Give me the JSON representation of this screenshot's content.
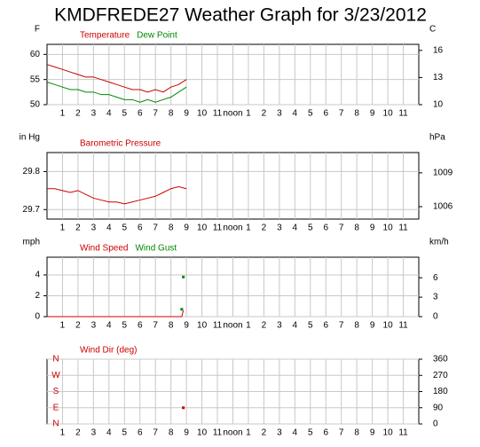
{
  "title": "KMDFREDE27 Weather Graph for 3/23/2012",
  "chart_data": [
    {
      "type": "line",
      "y_label": "F",
      "y2_label": "C",
      "xlim": [
        0,
        24
      ],
      "xticks": [
        1,
        2,
        3,
        4,
        5,
        6,
        7,
        8,
        9,
        10,
        11,
        {
          "value": 12,
          "label": "noon"
        },
        {
          "value": 13,
          "label": "1"
        },
        {
          "value": 14,
          "label": "2"
        },
        {
          "value": 15,
          "label": "3"
        },
        {
          "value": 16,
          "label": "4"
        },
        {
          "value": 17,
          "label": "5"
        },
        {
          "value": 18,
          "label": "6"
        },
        {
          "value": 19,
          "label": "7"
        },
        {
          "value": 20,
          "label": "8"
        },
        {
          "value": 21,
          "label": "9"
        },
        {
          "value": 22,
          "label": "10"
        },
        {
          "value": 23,
          "label": "11"
        }
      ],
      "ylim": [
        50,
        62
      ],
      "yticks": [
        50,
        55,
        60
      ],
      "y2lim": [
        10,
        16.67
      ],
      "y2ticks": [
        10,
        13,
        16
      ],
      "grid": true,
      "series": [
        {
          "name": "Temperature",
          "color": "#cc0000",
          "x": [
            0,
            0.5,
            1,
            1.5,
            2,
            2.5,
            3,
            3.5,
            4,
            4.5,
            5,
            5.5,
            6,
            6.5,
            7,
            7.5,
            8,
            8.5,
            9
          ],
          "values": [
            58,
            57.5,
            57,
            56.5,
            56,
            55.5,
            55.5,
            55,
            54.5,
            54,
            53.5,
            53,
            53,
            52.5,
            53,
            52.5,
            53.5,
            54,
            55
          ]
        },
        {
          "name": "Dew Point",
          "color": "#008800",
          "x": [
            0,
            0.5,
            1,
            1.5,
            2,
            2.5,
            3,
            3.5,
            4,
            4.5,
            5,
            5.5,
            6,
            6.5,
            7,
            7.5,
            8,
            8.5,
            9
          ],
          "values": [
            54.5,
            54,
            53.5,
            53,
            53,
            52.5,
            52.5,
            52,
            52,
            51.5,
            51,
            51,
            50.5,
            51,
            50.5,
            51,
            51.5,
            52.5,
            53.5
          ]
        }
      ]
    },
    {
      "type": "line",
      "y_label": "in Hg",
      "y2_label": "hPa",
      "xlim": [
        0,
        24
      ],
      "xticks": [
        1,
        2,
        3,
        4,
        5,
        6,
        7,
        8,
        9,
        10,
        11,
        {
          "value": 12,
          "label": "noon"
        },
        {
          "value": 13,
          "label": "1"
        },
        {
          "value": 14,
          "label": "2"
        },
        {
          "value": 15,
          "label": "3"
        },
        {
          "value": 16,
          "label": "4"
        },
        {
          "value": 17,
          "label": "5"
        },
        {
          "value": 18,
          "label": "6"
        },
        {
          "value": 19,
          "label": "7"
        },
        {
          "value": 20,
          "label": "8"
        },
        {
          "value": 21,
          "label": "9"
        },
        {
          "value": 22,
          "label": "10"
        },
        {
          "value": 23,
          "label": "11"
        }
      ],
      "ylim": [
        29.675,
        29.85
      ],
      "yticks": [
        29.7,
        29.8
      ],
      "y2lim": [
        1004.9,
        1010.8
      ],
      "y2ticks": [
        1006,
        1009
      ],
      "grid": true,
      "series": [
        {
          "name": "Barometric Pressure",
          "color": "#cc0000",
          "x": [
            0,
            0.5,
            1,
            1.5,
            2,
            2.5,
            3,
            3.5,
            4,
            4.5,
            5,
            5.5,
            6,
            6.5,
            7,
            7.5,
            8,
            8.5,
            9
          ],
          "values": [
            29.755,
            29.755,
            29.75,
            29.745,
            29.75,
            29.74,
            29.73,
            29.725,
            29.72,
            29.72,
            29.715,
            29.72,
            29.725,
            29.73,
            29.735,
            29.745,
            29.755,
            29.76,
            29.755
          ]
        }
      ]
    },
    {
      "type": "line",
      "y_label": "mph",
      "y2_label": "km/h",
      "xlim": [
        0,
        24
      ],
      "xticks": [
        1,
        2,
        3,
        4,
        5,
        6,
        7,
        8,
        9,
        10,
        11,
        {
          "value": 12,
          "label": "noon"
        },
        {
          "value": 13,
          "label": "1"
        },
        {
          "value": 14,
          "label": "2"
        },
        {
          "value": 15,
          "label": "3"
        },
        {
          "value": 16,
          "label": "4"
        },
        {
          "value": 17,
          "label": "5"
        },
        {
          "value": 18,
          "label": "6"
        },
        {
          "value": 19,
          "label": "7"
        },
        {
          "value": 20,
          "label": "8"
        },
        {
          "value": 21,
          "label": "9"
        },
        {
          "value": 22,
          "label": "10"
        },
        {
          "value": 23,
          "label": "11"
        }
      ],
      "ylim": [
        0,
        5.7
      ],
      "yticks": [
        0,
        2,
        4
      ],
      "y2lim": [
        0,
        9.17
      ],
      "y2ticks": [
        0,
        3,
        6
      ],
      "grid": true,
      "series": [
        {
          "name": "Wind Speed",
          "color": "#cc0000",
          "x": [
            0,
            8.7,
            8.8
          ],
          "values": [
            0,
            0,
            0.6
          ]
        },
        {
          "name": "Wind Gust",
          "color": "#008800",
          "mode": "markers",
          "x": [
            8.7,
            8.8
          ],
          "values": [
            0.7,
            3.8
          ]
        }
      ]
    },
    {
      "type": "scatter",
      "y2_label": null,
      "xlim": [
        0,
        24
      ],
      "xticks": [
        1,
        2,
        3,
        4,
        5,
        6,
        7,
        8,
        9,
        10,
        11,
        {
          "value": 12,
          "label": "noon"
        },
        {
          "value": 13,
          "label": "1"
        },
        {
          "value": 14,
          "label": "2"
        },
        {
          "value": 15,
          "label": "3"
        },
        {
          "value": 16,
          "label": "4"
        },
        {
          "value": 17,
          "label": "5"
        },
        {
          "value": 18,
          "label": "6"
        },
        {
          "value": 19,
          "label": "7"
        },
        {
          "value": 20,
          "label": "8"
        },
        {
          "value": 21,
          "label": "9"
        },
        {
          "value": 22,
          "label": "10"
        },
        {
          "value": 23,
          "label": "11"
        }
      ],
      "ylim": [
        0,
        360
      ],
      "yticks": [
        {
          "value": 360,
          "label": "N"
        },
        {
          "value": 270,
          "label": "W"
        },
        {
          "value": 180,
          "label": "S"
        },
        {
          "value": 90,
          "label": "E"
        },
        {
          "value": 0,
          "label": "N"
        }
      ],
      "ytick_color": "#cc0000",
      "y2lim": [
        0,
        360
      ],
      "y2ticks": [
        0,
        90,
        180,
        270,
        360
      ],
      "grid": true,
      "series": [
        {
          "name": "Wind Dir (deg)",
          "color": "#cc0000",
          "mode": "markers",
          "x": [
            8.8
          ],
          "values": [
            90
          ]
        }
      ]
    }
  ]
}
